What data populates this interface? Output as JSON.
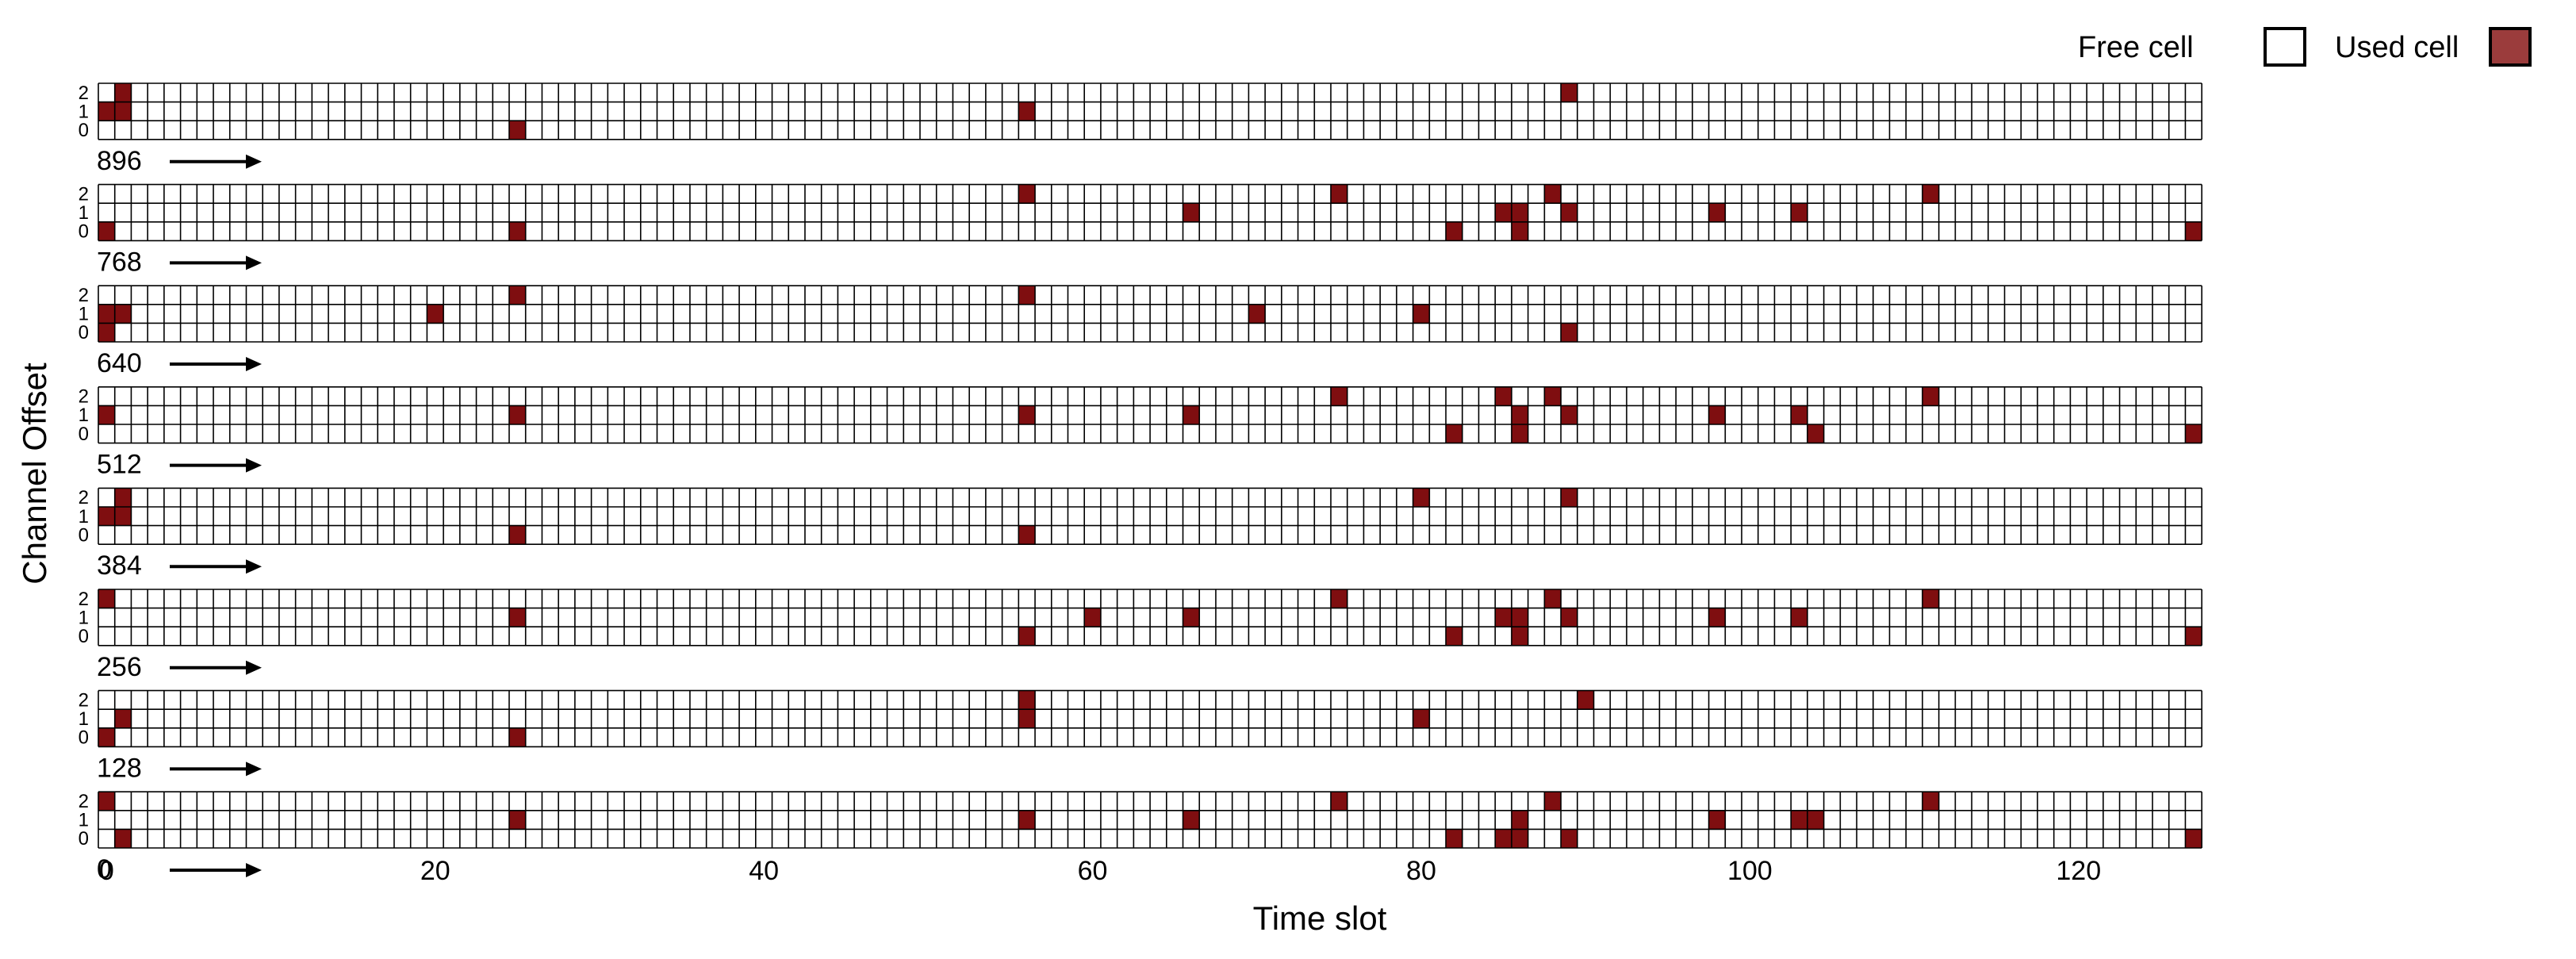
{
  "colors": {
    "used": "#7f0e10",
    "free": "#ffffff",
    "grid": "#000000",
    "legend_used": "#9b3c3c"
  },
  "chart_data": {
    "type": "heatmap",
    "xlabel": "Time slot",
    "ylabel": "Channel Offset",
    "x_ticks": [
      0,
      20,
      40,
      60,
      80,
      100,
      120
    ],
    "y_ticks": [
      0,
      1,
      2
    ],
    "slots_per_row": 128,
    "channel_offsets": 3,
    "legend": {
      "free": "Free cell",
      "used": "Used cell"
    },
    "rows": [
      {
        "start_label": "896",
        "used": [
          [
            0,
            1
          ],
          [
            1,
            1
          ],
          [
            1,
            2
          ],
          [
            25,
            0
          ],
          [
            56,
            1
          ],
          [
            89,
            2
          ]
        ]
      },
      {
        "start_label": "768",
        "used": [
          [
            0,
            0
          ],
          [
            25,
            0
          ],
          [
            56,
            2
          ],
          [
            66,
            1
          ],
          [
            75,
            2
          ],
          [
            82,
            0
          ],
          [
            85,
            1
          ],
          [
            86,
            1
          ],
          [
            86,
            0
          ],
          [
            88,
            2
          ],
          [
            89,
            1
          ],
          [
            98,
            1
          ],
          [
            103,
            1
          ],
          [
            111,
            2
          ],
          [
            127,
            0
          ]
        ]
      },
      {
        "start_label": "640",
        "used": [
          [
            0,
            1
          ],
          [
            0,
            0
          ],
          [
            1,
            1
          ],
          [
            20,
            1
          ],
          [
            25,
            2
          ],
          [
            56,
            2
          ],
          [
            70,
            1
          ],
          [
            80,
            1
          ],
          [
            89,
            0
          ]
        ]
      },
      {
        "start_label": "512",
        "used": [
          [
            0,
            1
          ],
          [
            25,
            1
          ],
          [
            56,
            1
          ],
          [
            66,
            1
          ],
          [
            75,
            2
          ],
          [
            82,
            0
          ],
          [
            85,
            2
          ],
          [
            86,
            1
          ],
          [
            86,
            0
          ],
          [
            88,
            2
          ],
          [
            89,
            1
          ],
          [
            98,
            1
          ],
          [
            103,
            1
          ],
          [
            104,
            0
          ],
          [
            111,
            2
          ],
          [
            127,
            0
          ]
        ]
      },
      {
        "start_label": "384",
        "used": [
          [
            0,
            1
          ],
          [
            1,
            1
          ],
          [
            1,
            2
          ],
          [
            25,
            0
          ],
          [
            56,
            0
          ],
          [
            80,
            2
          ],
          [
            89,
            2
          ]
        ]
      },
      {
        "start_label": "256",
        "used": [
          [
            0,
            2
          ],
          [
            25,
            1
          ],
          [
            56,
            0
          ],
          [
            60,
            1
          ],
          [
            66,
            1
          ],
          [
            75,
            2
          ],
          [
            82,
            0
          ],
          [
            85,
            1
          ],
          [
            86,
            1
          ],
          [
            86,
            0
          ],
          [
            88,
            2
          ],
          [
            89,
            1
          ],
          [
            98,
            1
          ],
          [
            103,
            1
          ],
          [
            111,
            2
          ],
          [
            127,
            0
          ]
        ]
      },
      {
        "start_label": "128",
        "used": [
          [
            0,
            0
          ],
          [
            1,
            1
          ],
          [
            25,
            0
          ],
          [
            56,
            2
          ],
          [
            56,
            1
          ],
          [
            80,
            1
          ],
          [
            90,
            2
          ]
        ]
      },
      {
        "start_label": "0",
        "used": [
          [
            0,
            2
          ],
          [
            1,
            0
          ],
          [
            25,
            1
          ],
          [
            56,
            1
          ],
          [
            66,
            1
          ],
          [
            75,
            2
          ],
          [
            82,
            0
          ],
          [
            85,
            0
          ],
          [
            86,
            1
          ],
          [
            86,
            0
          ],
          [
            88,
            2
          ],
          [
            89,
            0
          ],
          [
            98,
            1
          ],
          [
            103,
            1
          ],
          [
            104,
            1
          ],
          [
            111,
            2
          ],
          [
            127,
            0
          ]
        ]
      }
    ]
  }
}
